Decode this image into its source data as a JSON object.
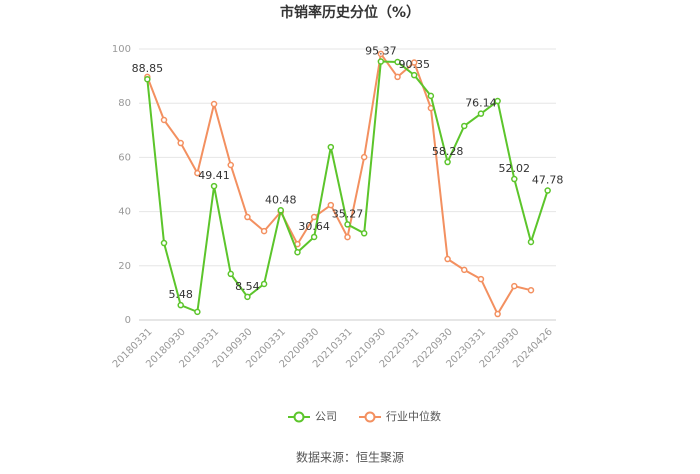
{
  "chart_data": {
    "type": "line",
    "title": "市销率历史分位（%）",
    "categories": [
      "20180331",
      null,
      "20180930",
      null,
      "20190331",
      null,
      "20190930",
      null,
      "20200331",
      null,
      "20200930",
      null,
      "20210331",
      null,
      "20210930",
      null,
      "20220331",
      null,
      "20220930",
      null,
      "20230331",
      null,
      "20230930",
      null,
      "20240426"
    ],
    "series": [
      {
        "name": "公司",
        "color": "#5cc52b",
        "values": [
          88.85,
          28.4,
          5.48,
          3,
          49.41,
          17,
          8.54,
          13.3,
          40.48,
          25,
          30.64,
          63.8,
          35.27,
          32,
          95.37,
          95.2,
          90.35,
          82.7,
          58.28,
          71.6,
          76.14,
          80.8,
          52.02,
          28.8,
          47.78
        ],
        "value_labels": [
          "88.85",
          null,
          "5.48",
          null,
          "49.41",
          null,
          "8.54",
          null,
          "40.48",
          null,
          "30.64",
          null,
          "35.27",
          null,
          "95.37",
          null,
          "90.35",
          null,
          "58.28",
          null,
          "76.14",
          null,
          "52.02",
          null,
          "47.78"
        ]
      },
      {
        "name": "行业中位数",
        "color": "#f39060",
        "values": [
          89.7,
          73.8,
          65.3,
          54.2,
          79.7,
          57.2,
          38,
          32.8,
          39.9,
          28,
          38,
          42.4,
          30.6,
          60.1,
          98.2,
          89.7,
          95,
          78.2,
          22.5,
          18.5,
          15.1,
          2.2,
          12.5,
          11,
          null
        ]
      }
    ],
    "ylim": [
      0,
      100
    ],
    "yticks": [
      0,
      20,
      40,
      60,
      80,
      100
    ],
    "grid": true,
    "source": "数据来源：恒生聚源"
  }
}
